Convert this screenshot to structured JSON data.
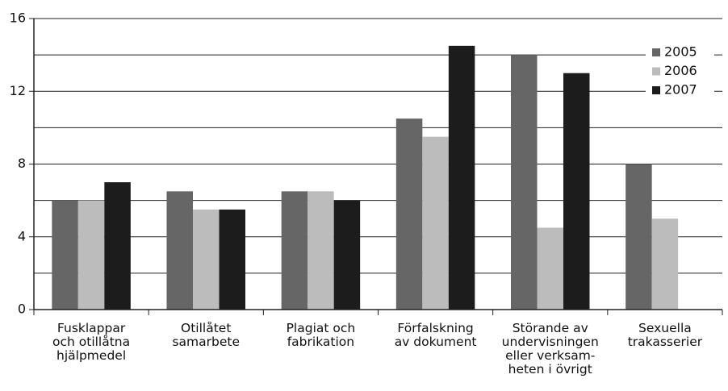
{
  "chart_data": {
    "type": "bar",
    "categories": [
      "Fusklappar\noch otillåtna\nhjälpmedel",
      "Otillåtet\nsamarbete",
      "Plagiat och\nfabrikation",
      "Förfalskning\nav dokument",
      "Störande av\nundervisningen\neller verksam-\nheten i övrigt",
      "Sexuella\ntrakasserier"
    ],
    "series": [
      {
        "name": "2005",
        "color": "#666666",
        "values": [
          6,
          6.5,
          6.5,
          10.5,
          14,
          8
        ]
      },
      {
        "name": "2006",
        "color": "#bcbcbc",
        "values": [
          6,
          5.5,
          6.5,
          9.5,
          4.5,
          5
        ]
      },
      {
        "name": "2007",
        "color": "#1c1c1c",
        "values": [
          7,
          5.5,
          6,
          14.5,
          13,
          null
        ]
      }
    ],
    "ylim": [
      0,
      16
    ],
    "yticks": [
      0,
      4,
      8,
      12,
      16
    ],
    "ygrid": [
      2,
      4,
      6,
      8,
      10,
      12,
      14,
      16
    ],
    "grid": true,
    "legend": "top-right"
  }
}
